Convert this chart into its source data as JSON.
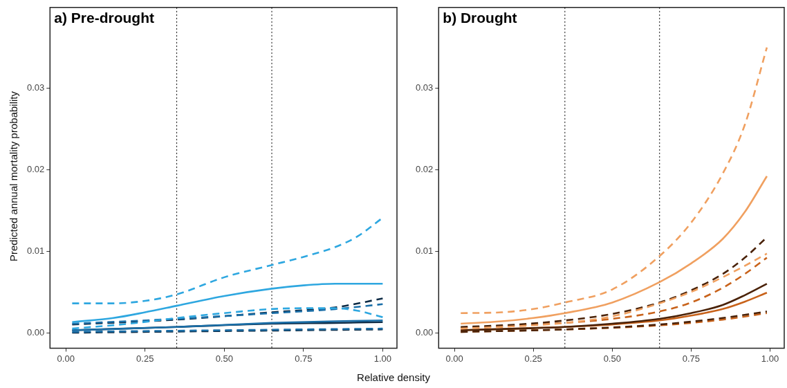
{
  "chart_data": [
    {
      "type": "line",
      "title": "a) Pre-drought",
      "ylabel": "Predicted annual mortality probability",
      "xlabel": "Relative density",
      "grid": false,
      "legend": false,
      "marker": "none",
      "xlim": [
        -0.05,
        1.045
      ],
      "ylim": [
        -0.0019,
        0.0399
      ],
      "xticks": [
        {
          "value": 0,
          "label": "0.00"
        },
        {
          "value": 0.25,
          "label": "0.25"
        },
        {
          "value": 0.5,
          "label": "0.50"
        },
        {
          "value": 0.75,
          "label": "0.75"
        },
        {
          "value": 1,
          "label": "1.00"
        }
      ],
      "yticks": [
        {
          "value": 0,
          "label": "0.00"
        },
        {
          "value": 0.01,
          "label": "0.01"
        },
        {
          "value": 0.02,
          "label": "0.02"
        },
        {
          "value": 0.03,
          "label": "0.03"
        }
      ],
      "ref_lines": [
        {
          "axis": "x",
          "value": 0.35,
          "line_style": "dotted",
          "color": "#000000"
        },
        {
          "axis": "x",
          "value": 0.65,
          "line_style": "dotted",
          "color": "#000000"
        }
      ],
      "series": [
        {
          "color": "#2ea7e0",
          "line_style": "dashed",
          "x": [
            0.02,
            0.15,
            0.25,
            0.35,
            0.5,
            0.65,
            0.75,
            0.85,
            0.92,
            1.0
          ],
          "values": [
            0.0036,
            0.0036,
            0.0039,
            0.0047,
            0.0068,
            0.0083,
            0.0093,
            0.0105,
            0.0118,
            0.0141
          ]
        },
        {
          "color": "#2ea7e0",
          "line_style": "solid",
          "x": [
            0.02,
            0.15,
            0.25,
            0.35,
            0.5,
            0.65,
            0.75,
            0.85,
            1.0
          ],
          "values": [
            0.0013,
            0.0018,
            0.0025,
            0.0033,
            0.0045,
            0.0054,
            0.0058,
            0.006,
            0.006
          ]
        },
        {
          "color": "#2ea7e0",
          "line_style": "dashed",
          "x": [
            0.02,
            0.2,
            0.35,
            0.5,
            0.65,
            0.75,
            0.85,
            0.92,
            1.0
          ],
          "values": [
            0.0005,
            0.0011,
            0.0018,
            0.0024,
            0.0029,
            0.003,
            0.003,
            0.0027,
            0.0019
          ]
        },
        {
          "color": "#1b6fa8",
          "line_style": "dashed",
          "x": [
            0.02,
            0.35,
            0.65,
            0.85,
            1.0
          ],
          "values": [
            0.0011,
            0.0017,
            0.0024,
            0.0029,
            0.0035
          ]
        },
        {
          "color": "#1b6fa8",
          "line_style": "solid",
          "x": [
            0.02,
            0.35,
            0.65,
            0.85,
            1.0
          ],
          "values": [
            0.0003,
            0.0007,
            0.0012,
            0.0014,
            0.0015
          ]
        },
        {
          "color": "#1b6fa8",
          "line_style": "dashed",
          "x": [
            0.02,
            0.5,
            1.0
          ],
          "values": [
            0.0001,
            0.0003,
            0.0005
          ]
        },
        {
          "color": "#0d2b45",
          "line_style": "dashed",
          "x": [
            0.02,
            0.35,
            0.65,
            0.85,
            1.0
          ],
          "values": [
            0.001,
            0.0016,
            0.0025,
            0.0031,
            0.0042
          ]
        },
        {
          "color": "#0d2b45",
          "line_style": "solid",
          "x": [
            0.02,
            0.35,
            0.65,
            0.85,
            1.0
          ],
          "values": [
            0.0003,
            0.0007,
            0.0011,
            0.0012,
            0.0013
          ]
        },
        {
          "color": "#0d2b45",
          "line_style": "dashed",
          "x": [
            0.02,
            0.5,
            1.0
          ],
          "values": [
            0.0,
            0.0002,
            0.0004
          ]
        }
      ]
    },
    {
      "type": "line",
      "title": "b) Drought",
      "grid": false,
      "legend": false,
      "marker": "none",
      "xlim": [
        -0.05,
        1.045
      ],
      "ylim": [
        -0.0019,
        0.0399
      ],
      "xticks": [
        {
          "value": 0,
          "label": "0.00"
        },
        {
          "value": 0.25,
          "label": "0.25"
        },
        {
          "value": 0.5,
          "label": "0.50"
        },
        {
          "value": 0.75,
          "label": "0.75"
        },
        {
          "value": 1,
          "label": "1.00"
        }
      ],
      "yticks": [
        {
          "value": 0,
          "label": "0.00"
        },
        {
          "value": 0.01,
          "label": "0.01"
        },
        {
          "value": 0.02,
          "label": "0.02"
        },
        {
          "value": 0.03,
          "label": "0.03"
        }
      ],
      "ref_lines": [
        {
          "axis": "x",
          "value": 0.35,
          "line_style": "dotted",
          "color": "#000000"
        },
        {
          "axis": "x",
          "value": 0.65,
          "line_style": "dotted",
          "color": "#000000"
        }
      ],
      "series": [
        {
          "color": "#f0a060",
          "line_style": "dashed",
          "x": [
            0.02,
            0.15,
            0.25,
            0.35,
            0.5,
            0.65,
            0.75,
            0.85,
            0.92,
            0.99
          ],
          "values": [
            0.0024,
            0.0025,
            0.0029,
            0.0037,
            0.0053,
            0.0094,
            0.0135,
            0.0195,
            0.0255,
            0.035
          ]
        },
        {
          "color": "#f0a060",
          "line_style": "solid",
          "x": [
            0.02,
            0.15,
            0.25,
            0.35,
            0.5,
            0.65,
            0.75,
            0.85,
            0.92,
            0.99
          ],
          "values": [
            0.0011,
            0.0014,
            0.0018,
            0.0024,
            0.0037,
            0.0062,
            0.0085,
            0.0115,
            0.0148,
            0.0192
          ]
        },
        {
          "color": "#f0a060",
          "line_style": "dashed",
          "x": [
            0.02,
            0.2,
            0.35,
            0.5,
            0.65,
            0.75,
            0.85,
            0.92,
            0.99
          ],
          "values": [
            0.0005,
            0.0008,
            0.0012,
            0.002,
            0.0036,
            0.005,
            0.0068,
            0.0082,
            0.0097
          ]
        },
        {
          "color": "#4a2208",
          "line_style": "dashed",
          "x": [
            0.02,
            0.2,
            0.35,
            0.5,
            0.65,
            0.75,
            0.85,
            0.92,
            0.99
          ],
          "values": [
            0.0007,
            0.001,
            0.0015,
            0.0023,
            0.0037,
            0.0052,
            0.0072,
            0.0092,
            0.0117
          ]
        },
        {
          "color": "#4a2208",
          "line_style": "solid",
          "x": [
            0.02,
            0.2,
            0.35,
            0.5,
            0.65,
            0.75,
            0.85,
            0.92,
            0.99
          ],
          "values": [
            0.0003,
            0.0005,
            0.0007,
            0.0011,
            0.0017,
            0.0024,
            0.0034,
            0.0046,
            0.006
          ]
        },
        {
          "color": "#4a2208",
          "line_style": "dashed",
          "x": [
            0.02,
            0.35,
            0.65,
            0.85,
            0.99
          ],
          "values": [
            0.0001,
            0.0004,
            0.001,
            0.0018,
            0.0026
          ]
        },
        {
          "color": "#c8621a",
          "line_style": "dashed",
          "x": [
            0.02,
            0.2,
            0.35,
            0.5,
            0.65,
            0.75,
            0.85,
            0.92,
            0.99
          ],
          "values": [
            0.0006,
            0.0009,
            0.0012,
            0.0017,
            0.0026,
            0.0037,
            0.0055,
            0.0072,
            0.0092
          ]
        },
        {
          "color": "#c8621a",
          "line_style": "solid",
          "x": [
            0.02,
            0.2,
            0.35,
            0.5,
            0.65,
            0.75,
            0.85,
            0.92,
            0.99
          ],
          "values": [
            0.0003,
            0.0005,
            0.0007,
            0.001,
            0.0015,
            0.0021,
            0.0029,
            0.0038,
            0.0049
          ]
        },
        {
          "color": "#c8621a",
          "line_style": "dashed",
          "x": [
            0.02,
            0.35,
            0.65,
            0.85,
            0.99
          ],
          "values": [
            0.0001,
            0.0004,
            0.0009,
            0.0016,
            0.0024
          ]
        }
      ]
    }
  ]
}
